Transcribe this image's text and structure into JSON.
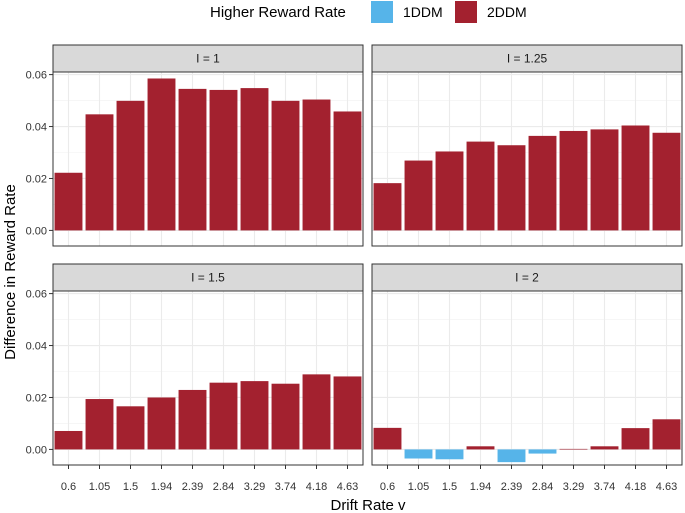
{
  "chart_data": {
    "type": "bar",
    "xlabel": "Drift Rate v",
    "ylabel": "Difference in Reward Rate",
    "categories": [
      "0.6",
      "1.05",
      "1.5",
      "1.94",
      "2.39",
      "2.84",
      "3.29",
      "3.74",
      "4.18",
      "4.63"
    ],
    "ylim": [
      -0.006,
      0.061
    ],
    "yticks": [
      0.0,
      0.02,
      0.04,
      0.06
    ],
    "ytick_labels": [
      "0.00",
      "0.02",
      "0.04",
      "0.06"
    ],
    "grid": true,
    "legend": {
      "title": "Higher Reward Rate",
      "position": "top",
      "entries": [
        {
          "name": "1DDM",
          "color": "#56B4E9"
        },
        {
          "name": "2DDM",
          "color": "#A3212F"
        }
      ]
    },
    "facets": [
      {
        "label": "I = 1",
        "values": [
          0.0222,
          0.0447,
          0.0499,
          0.0585,
          0.0545,
          0.0541,
          0.0548,
          0.0499,
          0.0504,
          0.0458
        ]
      },
      {
        "label": "I = 1.25",
        "values": [
          0.0182,
          0.0269,
          0.0304,
          0.0342,
          0.0328,
          0.0364,
          0.0383,
          0.0389,
          0.0404,
          0.0376
        ]
      },
      {
        "label": "I = 1.5",
        "values": [
          0.0071,
          0.0194,
          0.0166,
          0.02,
          0.0229,
          0.0257,
          0.0263,
          0.0253,
          0.0289,
          0.0281
        ]
      },
      {
        "label": "I = 2",
        "values": [
          0.0083,
          -0.0035,
          -0.0038,
          0.0012,
          -0.0049,
          -0.0016,
          0.0002,
          0.0012,
          0.0082,
          0.0116
        ]
      }
    ]
  }
}
